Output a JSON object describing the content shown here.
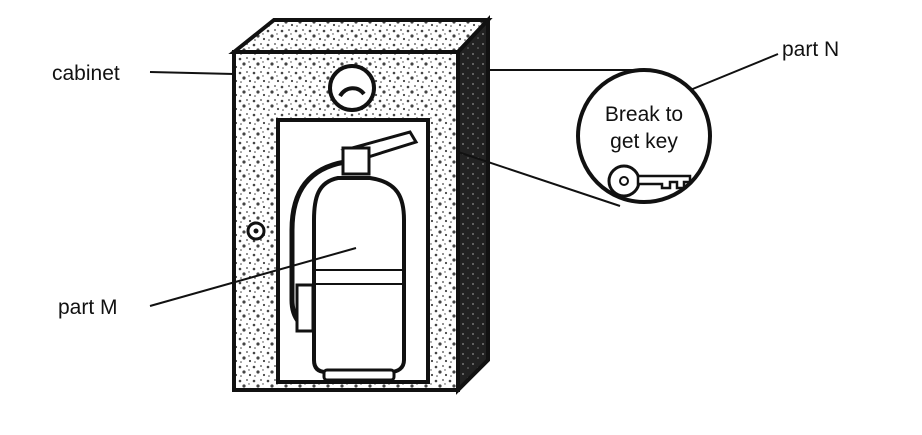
{
  "labels": {
    "cabinet": "cabinet",
    "part_m": "part M",
    "part_n": "part N"
  },
  "callout": {
    "line1": "Break to",
    "line2": "get key"
  },
  "colors": {
    "ink": "#111111",
    "paper": "#ffffff",
    "speckle": "#444444"
  },
  "icons": {
    "key": "key-icon",
    "glass_disc": "break-glass-icon",
    "lock": "keyhole-icon"
  }
}
